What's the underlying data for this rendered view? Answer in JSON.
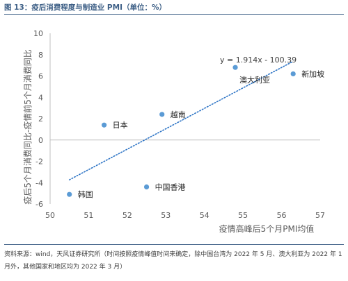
{
  "figure_title": "图 13：疫后消费程度与制造业 PMI（单位：%）",
  "source_note": "资料来源：wind，天风证券研究所（时间按照疫情峰值时间来确定，除中国台湾为 2022 年 5 月、澳大利亚为 2022 年 1 月外，其他国家和地区均为 2022 年 3 月）",
  "colors": {
    "title": "#3d5f86",
    "point": "#5b9bd5",
    "trend": "#2e75c6",
    "text": "#404040",
    "axis": "#bfbfbf"
  },
  "chart_data": {
    "type": "scatter",
    "xlabel": "疫情高峰后5个月PMI均值",
    "ylabel": "疫后5个月消费同比-疫情前5个月消费同比",
    "xlim": [
      50,
      57
    ],
    "ylim": [
      -6,
      10
    ],
    "xticks": [
      50,
      51,
      52,
      53,
      54,
      55,
      56,
      57
    ],
    "yticks": [
      -6,
      -4,
      -2,
      0,
      2,
      4,
      6,
      8,
      10
    ],
    "grid": false,
    "points": [
      {
        "label": "韩国",
        "x": 50.5,
        "y": -5.1
      },
      {
        "label": "日本",
        "x": 51.4,
        "y": 1.4
      },
      {
        "label": "中国香港",
        "x": 52.5,
        "y": -4.4
      },
      {
        "label": "越南",
        "x": 52.9,
        "y": 2.4
      },
      {
        "label": "澳大利亚",
        "x": 54.8,
        "y": 6.8
      },
      {
        "label": "新加坡",
        "x": 56.3,
        "y": 6.2
      }
    ],
    "trendline": {
      "slope": 1.914,
      "intercept": -100.39,
      "x_range": [
        50.5,
        56.3
      ],
      "equation": "y = 1.914x - 100.39",
      "style": "dotted"
    }
  }
}
